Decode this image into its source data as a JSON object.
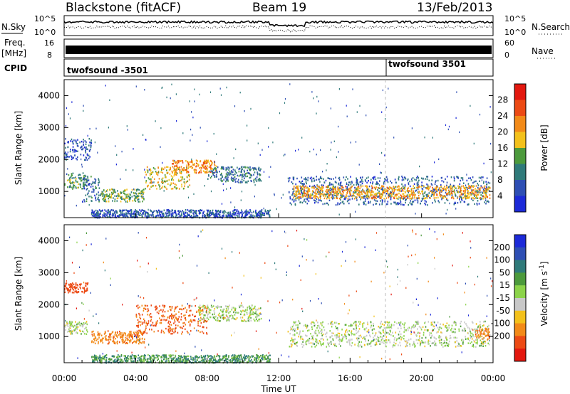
{
  "header": {
    "radar": "Blackstone (fitACF)",
    "beam": "Beam 19",
    "date": "13/Feb/2013"
  },
  "top_panels": {
    "nsky_label": "N.Sky",
    "nsky_ticks": [
      "10^5",
      "10^0"
    ],
    "nsearch_label": "N.Search",
    "nsearch_ticks": [
      "10^5",
      "10^0"
    ],
    "freq_label": "Freq.",
    "freq_unit": "[MHz]",
    "freq_ticks": [
      "16",
      "8"
    ],
    "nave_label": "Nave",
    "nave_ticks": [
      "60",
      "0"
    ],
    "cpid_label": "CPID",
    "cpid_segments": [
      {
        "name": "twofsound -3501",
        "start_hour": 0
      },
      {
        "name": "twofsound 3501",
        "start_hour": 18
      }
    ]
  },
  "chart_data": [
    {
      "type": "heatmap",
      "panel": "power",
      "ylabel": "Slant Range [km]",
      "yticks": [
        1000,
        2000,
        3000,
        4000
      ],
      "ylim": [
        180,
        4500
      ],
      "xlim": [
        0,
        24
      ],
      "colorbar_label": "Power [dB]",
      "colorbar_ticks": [
        4,
        8,
        12,
        16,
        20,
        24,
        28
      ],
      "colorbar_range": [
        0,
        32
      ],
      "colors": [
        "#1c2ad8",
        "#2e4fb4",
        "#2f7a7a",
        "#4c9a3c",
        "#f3c11b",
        "#f28a18",
        "#ec4a14",
        "#e3180f"
      ],
      "regions": [
        {
          "t0": 0.0,
          "t1": 1.3,
          "r0": 1100,
          "r1": 1600,
          "value": 12
        },
        {
          "t0": 0.0,
          "t1": 1.5,
          "r0": 2000,
          "r1": 2700,
          "value": 6
        },
        {
          "t0": 1.0,
          "t1": 2.0,
          "r0": 700,
          "r1": 1500,
          "value": 8
        },
        {
          "t0": 2.0,
          "t1": 4.5,
          "r0": 700,
          "r1": 1100,
          "value": 14
        },
        {
          "t0": 4.5,
          "t1": 7.0,
          "r0": 1100,
          "r1": 1800,
          "value": 18
        },
        {
          "t0": 6.0,
          "t1": 8.5,
          "r0": 1600,
          "r1": 2000,
          "value": 22
        },
        {
          "t0": 8.0,
          "t1": 11.0,
          "r0": 1300,
          "r1": 1800,
          "value": 9
        },
        {
          "t0": 1.5,
          "t1": 11.5,
          "r0": 200,
          "r1": 450,
          "value": 6
        },
        {
          "t0": 12.5,
          "t1": 23.8,
          "r0": 600,
          "r1": 1500,
          "value": 7
        },
        {
          "t0": 12.8,
          "t1": 23.8,
          "r0": 800,
          "r1": 1200,
          "value": 20
        }
      ]
    },
    {
      "type": "heatmap",
      "panel": "velocity",
      "ylabel": "Slant Range [km]",
      "yticks": [
        1000,
        2000,
        3000,
        4000
      ],
      "ylim": [
        180,
        4500
      ],
      "xlim": [
        0,
        24
      ],
      "colorbar_label": "Velocity [m s^-1]",
      "colorbar_ticks": [
        200,
        100,
        50,
        15,
        -15,
        -50,
        -100,
        -200
      ],
      "colors": [
        "#1c2ad8",
        "#2e4fb4",
        "#2f7a7a",
        "#4c9a3c",
        "#8cd34a",
        "#c8c8c8",
        "#f3c11b",
        "#f28a18",
        "#ec4a14",
        "#e3180f"
      ],
      "regions": [
        {
          "t0": 0.0,
          "t1": 1.3,
          "r0": 1100,
          "r1": 1500,
          "value": 0
        },
        {
          "t0": 0.0,
          "t1": 1.3,
          "r0": 2400,
          "r1": 2700,
          "value": -120
        },
        {
          "t0": 1.5,
          "t1": 4.5,
          "r0": 800,
          "r1": 1200,
          "value": -60
        },
        {
          "t0": 4.0,
          "t1": 8.0,
          "r0": 1100,
          "r1": 2000,
          "value": -80
        },
        {
          "t0": 7.5,
          "t1": 11.0,
          "r0": 1500,
          "r1": 2000,
          "value": 0
        },
        {
          "t0": 1.5,
          "t1": 11.5,
          "r0": 200,
          "r1": 450,
          "value": 30
        },
        {
          "t0": 12.5,
          "t1": 23.8,
          "r0": 700,
          "r1": 1500,
          "value": 0
        },
        {
          "t0": 23.0,
          "t1": 23.8,
          "r0": 900,
          "r1": 1300,
          "value": -60
        }
      ]
    }
  ],
  "xaxis": {
    "ticks": [
      "00:00",
      "04:00",
      "08:00",
      "12:00",
      "16:00",
      "20:00",
      "00:00"
    ],
    "label": "Time UT"
  }
}
